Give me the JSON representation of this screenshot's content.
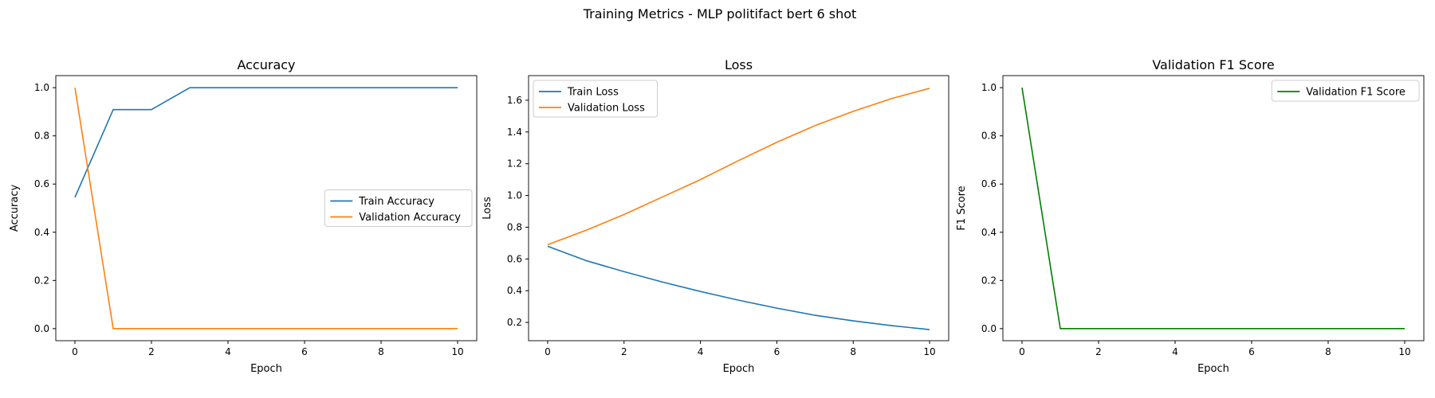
{
  "figure": {
    "suptitle": "Training Metrics - MLP politifact bert 6 shot"
  },
  "colors": {
    "blue": "#1f77b4",
    "orange": "#ff7f0e",
    "green": "#008000"
  },
  "chart_data": [
    {
      "type": "line",
      "title": "Accuracy",
      "xlabel": "Epoch",
      "ylabel": "Accuracy",
      "xlim": [
        -0.5,
        10.5
      ],
      "ylim": [
        -0.05,
        1.05
      ],
      "xticks": [
        0,
        2,
        4,
        6,
        8,
        10
      ],
      "yticks": [
        0.0,
        0.2,
        0.4,
        0.6,
        0.8,
        1.0
      ],
      "ytick_labels": [
        "0.0",
        "0.2",
        "0.4",
        "0.6",
        "0.8",
        "1.0"
      ],
      "legend": "center-right",
      "x": [
        0,
        1,
        2,
        3,
        4,
        5,
        6,
        7,
        8,
        9,
        10
      ],
      "series": [
        {
          "name": "Train Accuracy",
          "color": "blue",
          "values": [
            0.545,
            0.909,
            0.909,
            1.0,
            1.0,
            1.0,
            1.0,
            1.0,
            1.0,
            1.0,
            1.0
          ]
        },
        {
          "name": "Validation Accuracy",
          "color": "orange",
          "values": [
            1.0,
            0.0,
            0.0,
            0.0,
            0.0,
            0.0,
            0.0,
            0.0,
            0.0,
            0.0,
            0.0
          ]
        }
      ]
    },
    {
      "type": "line",
      "title": "Loss",
      "xlabel": "Epoch",
      "ylabel": "Loss",
      "xlim": [
        -0.5,
        10.5
      ],
      "ylim": [
        0.085,
        1.755
      ],
      "xticks": [
        0,
        2,
        4,
        6,
        8,
        10
      ],
      "yticks": [
        0.2,
        0.4,
        0.6,
        0.8,
        1.0,
        1.2,
        1.4,
        1.6
      ],
      "ytick_labels": [
        "0.2",
        "0.4",
        "0.6",
        "0.8",
        "1.0",
        "1.2",
        "1.4",
        "1.6"
      ],
      "legend": "upper-left",
      "x": [
        0,
        1,
        2,
        3,
        4,
        5,
        6,
        7,
        8,
        9,
        10
      ],
      "series": [
        {
          "name": "Train Loss",
          "color": "blue",
          "values": [
            0.68,
            0.59,
            0.52,
            0.455,
            0.395,
            0.34,
            0.29,
            0.245,
            0.21,
            0.18,
            0.155
          ]
        },
        {
          "name": "Validation Loss",
          "color": "orange",
          "values": [
            0.69,
            0.78,
            0.88,
            0.99,
            1.1,
            1.22,
            1.335,
            1.44,
            1.53,
            1.61,
            1.675
          ]
        }
      ]
    },
    {
      "type": "line",
      "title": "Validation F1 Score",
      "xlabel": "Epoch",
      "ylabel": "F1 Score",
      "xlim": [
        -0.5,
        10.5
      ],
      "ylim": [
        -0.05,
        1.05
      ],
      "xticks": [
        0,
        2,
        4,
        6,
        8,
        10
      ],
      "yticks": [
        0.0,
        0.2,
        0.4,
        0.6,
        0.8,
        1.0
      ],
      "ytick_labels": [
        "0.0",
        "0.2",
        "0.4",
        "0.6",
        "0.8",
        "1.0"
      ],
      "legend": "upper-right",
      "x": [
        0,
        1,
        2,
        3,
        4,
        5,
        6,
        7,
        8,
        9,
        10
      ],
      "series": [
        {
          "name": "Validation F1 Score",
          "color": "green",
          "values": [
            1.0,
            0.0,
            0.0,
            0.0,
            0.0,
            0.0,
            0.0,
            0.0,
            0.0,
            0.0,
            0.0
          ]
        }
      ]
    }
  ]
}
